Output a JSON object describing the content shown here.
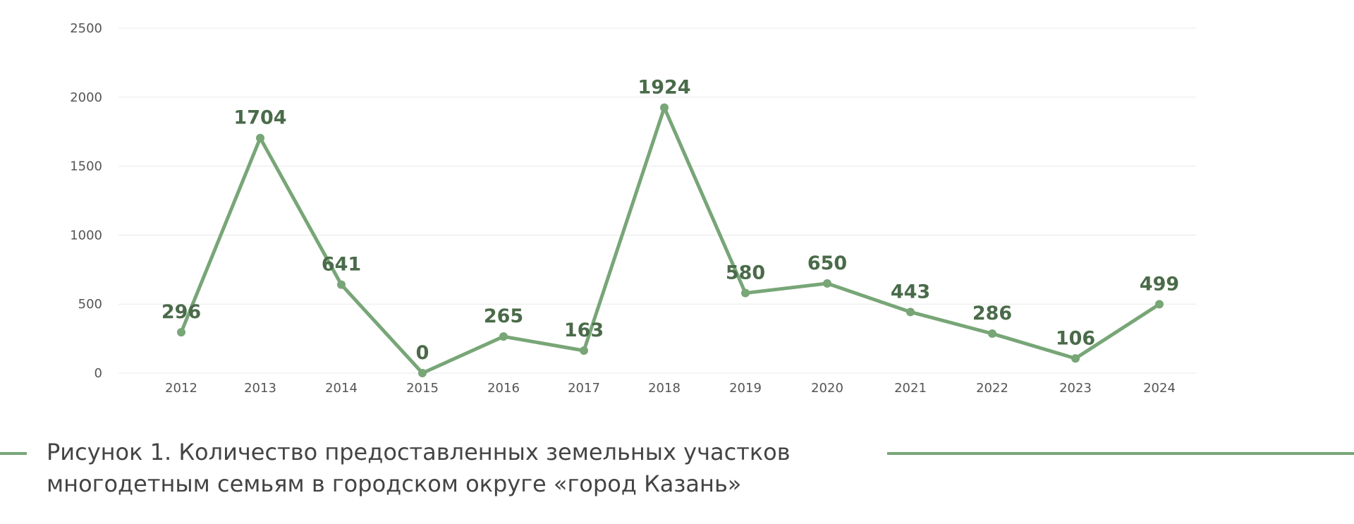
{
  "chart_data": {
    "type": "line",
    "x": [
      "2012",
      "2013",
      "2014",
      "2015",
      "2016",
      "2017",
      "2018",
      "2019",
      "2020",
      "2021",
      "2022",
      "2023",
      "2024"
    ],
    "series": [
      {
        "values": [
          296,
          1704,
          641,
          0,
          265,
          163,
          1924,
          580,
          650,
          443,
          286,
          106,
          499
        ]
      }
    ],
    "yticks": [
      "0",
      "500",
      "1000",
      "1500",
      "2000",
      "2500"
    ],
    "ylim": [
      0,
      2500
    ],
    "grid": true,
    "legend": "none",
    "colors": {
      "line": "#78a677",
      "label": "#4a6b4a",
      "grid": "#e8e8e8"
    }
  },
  "caption": {
    "line1": "Рисунок 1. Количество предоставленных земельных участков",
    "line2": "многодетным семьям в городском округе «город Казань»"
  },
  "colors": {
    "decor_line": "#78a677"
  }
}
